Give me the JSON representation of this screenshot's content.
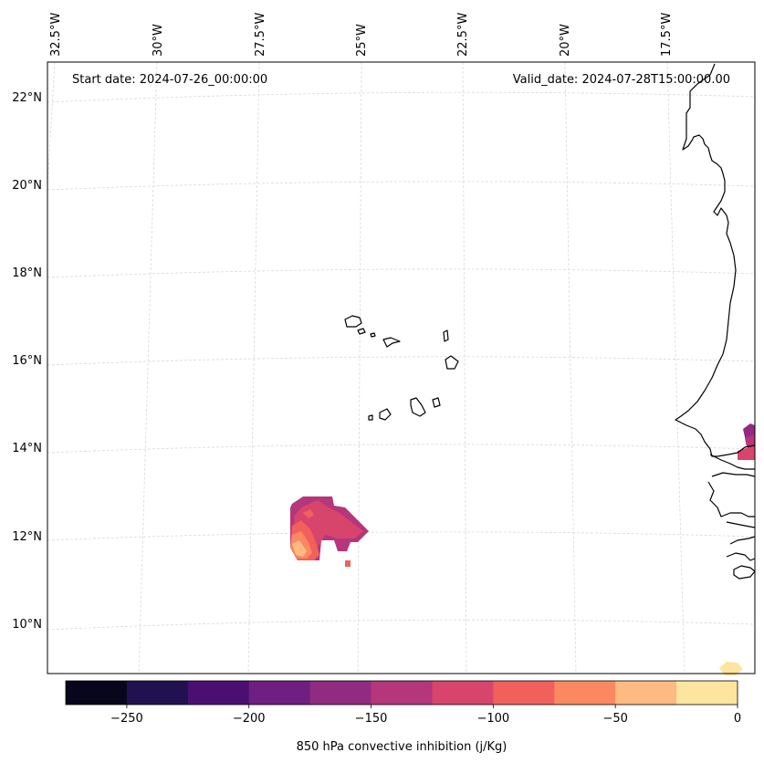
{
  "map": {
    "start_date": "Start date: 2024-07-26_00:00:00",
    "valid_date": "Valid_date: 2024-07-28T15:00:00.00",
    "lon_labels": [
      "32.5°W",
      "30°W",
      "27.5°W",
      "25°W",
      "22.5°W",
      "20°W",
      "17.5°W"
    ],
    "lat_labels": [
      "22°N",
      "20°N",
      "18°N",
      "16°N",
      "14°N",
      "12°N",
      "10°N"
    ],
    "variable": "850 hPa convective inhibition"
  },
  "colorbar": {
    "label": "850 hPa convective inhibition (j/Kg)",
    "ticks": [
      "−250",
      "−200",
      "−150",
      "−100",
      "−50",
      "0"
    ],
    "tick_values": [
      -250,
      -200,
      -150,
      -100,
      -50,
      0
    ],
    "range": [
      -275,
      0
    ],
    "levels": [
      -275,
      -250,
      -225,
      -200,
      -175,
      -150,
      -125,
      -100,
      -75,
      -50,
      -25,
      0
    ],
    "colors": [
      "#07061c",
      "#221150",
      "#4b0f72",
      "#6f1f81",
      "#912b81",
      "#b5367a",
      "#d8456c",
      "#f2605c",
      "#fb8861",
      "#feba80",
      "#fde5a0"
    ]
  }
}
